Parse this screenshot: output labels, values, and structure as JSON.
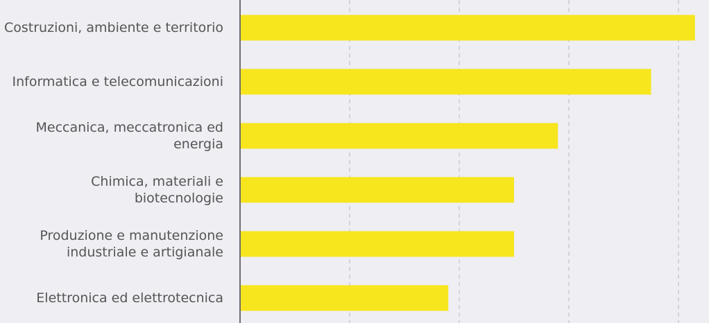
{
  "chart_data": {
    "type": "barh",
    "categories": [
      "Costruzioni, ambiente e territorio",
      "Informatica e telecomunicazioni",
      "Meccanica, meccatronica ed energia",
      "Chimica, materiali e biotecnologie",
      "Produzione e manutenzione industriale e artigianale",
      "Elettronica ed elettrotecnica"
    ],
    "values": [
      4.15,
      3.75,
      2.9,
      2.5,
      2.5,
      1.9
    ],
    "color": "#f7e51e",
    "xlim": [
      0,
      4.2
    ],
    "xticks": [
      0,
      1,
      2,
      3,
      4
    ],
    "grid": true
  }
}
